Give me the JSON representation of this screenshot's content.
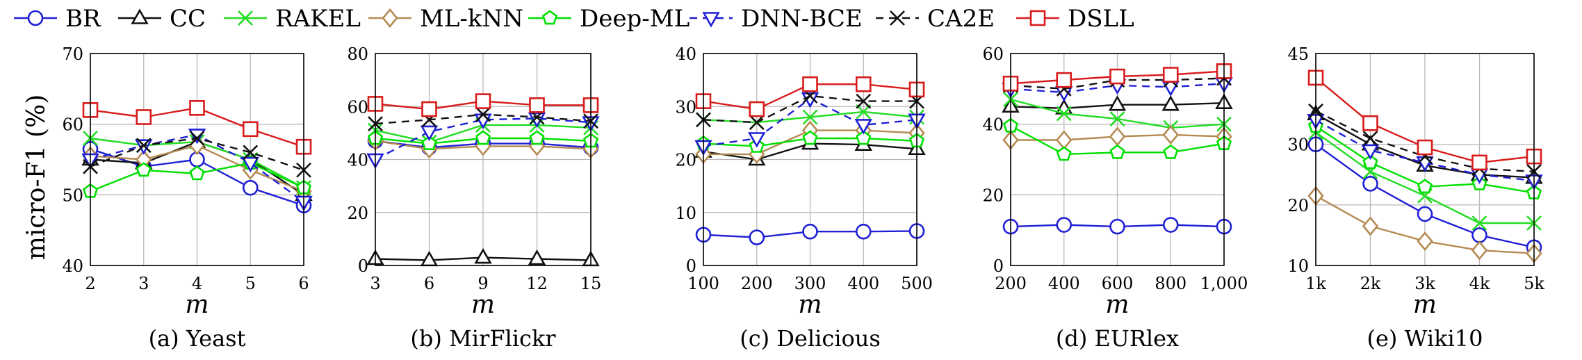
{
  "legend": [
    {
      "name": "BR",
      "color": "#1f1fd6",
      "marker": "circle",
      "dash": "solid"
    },
    {
      "name": "CC",
      "color": "#111111",
      "marker": "triangle-up",
      "dash": "solid"
    },
    {
      "name": "RAKEL",
      "color": "#22dd22",
      "marker": "x",
      "dash": "solid"
    },
    {
      "name": "ML-kNN",
      "color": "#b48a52",
      "marker": "diamond",
      "dash": "solid"
    },
    {
      "name": "Deep-ML",
      "color": "#00e000",
      "marker": "pentagon",
      "dash": "solid"
    },
    {
      "name": "DNN-BCE",
      "color": "#1f1fd6",
      "marker": "triangle-down",
      "dash": "dashed"
    },
    {
      "name": "CA2E",
      "color": "#111111",
      "marker": "x",
      "dash": "dashed"
    },
    {
      "name": "DSLL",
      "color": "#d81b1b",
      "marker": "square",
      "dash": "solid"
    }
  ],
  "ylabel": "micro-F1 (%)",
  "chart_data": [
    {
      "type": "line",
      "caption": "(a) Yeast",
      "xlabel": "m",
      "x": [
        "2",
        "3",
        "4",
        "5",
        "6"
      ],
      "ylim": [
        40,
        70
      ],
      "yticks": [
        40,
        50,
        60,
        70
      ],
      "grid": true,
      "series": [
        {
          "name": "BR",
          "values": [
            56.5,
            54.0,
            55.0,
            51.0,
            48.5
          ]
        },
        {
          "name": "CC",
          "values": [
            55.0,
            54.5,
            57.5,
            55.0,
            50.0
          ]
        },
        {
          "name": "RAKEL",
          "values": [
            58.0,
            57.0,
            57.5,
            55.0,
            51.0
          ]
        },
        {
          "name": "ML-kNN",
          "values": [
            55.5,
            55.0,
            57.0,
            53.5,
            50.5
          ]
        },
        {
          "name": "Deep-ML",
          "values": [
            50.5,
            53.5,
            53.0,
            54.5,
            51.0
          ]
        },
        {
          "name": "DNN-BCE",
          "values": [
            55.0,
            57.0,
            58.5,
            54.5,
            49.0
          ]
        },
        {
          "name": "CA2E",
          "values": [
            54.0,
            57.0,
            58.0,
            56.0,
            53.5
          ]
        },
        {
          "name": "DSLL",
          "values": [
            62.0,
            61.0,
            62.3,
            59.3,
            56.8
          ]
        }
      ]
    },
    {
      "type": "line",
      "caption": "(b) MirFlickr",
      "xlabel": "m",
      "x": [
        "3",
        "6",
        "9",
        "12",
        "15"
      ],
      "ylim": [
        0,
        80
      ],
      "yticks": [
        0,
        20,
        40,
        60,
        80
      ],
      "grid": true,
      "series": [
        {
          "name": "BR",
          "values": [
            47.0,
            44.5,
            46.0,
            46.0,
            44.5
          ]
        },
        {
          "name": "CC",
          "values": [
            2.5,
            2.0,
            3.0,
            2.5,
            2.0
          ]
        },
        {
          "name": "RAKEL",
          "values": [
            51.0,
            46.5,
            53.0,
            53.0,
            52.0
          ]
        },
        {
          "name": "ML-kNN",
          "values": [
            47.0,
            44.0,
            45.0,
            45.0,
            44.0
          ]
        },
        {
          "name": "Deep-ML",
          "values": [
            48.0,
            46.0,
            48.0,
            48.0,
            47.0
          ]
        },
        {
          "name": "DNN-BCE",
          "values": [
            40.0,
            50.5,
            55.0,
            55.5,
            54.0
          ]
        },
        {
          "name": "CA2E",
          "values": [
            53.5,
            55.0,
            57.0,
            56.0,
            54.5
          ]
        },
        {
          "name": "DSLL",
          "values": [
            61.0,
            59.0,
            62.0,
            60.5,
            60.5
          ]
        }
      ]
    },
    {
      "type": "line",
      "caption": "(c) Delicious",
      "xlabel": "m",
      "x": [
        "100",
        "200",
        "300",
        "400",
        "500"
      ],
      "ylim": [
        0,
        40
      ],
      "yticks": [
        0,
        10,
        20,
        30,
        40
      ],
      "grid": true,
      "series": [
        {
          "name": "BR",
          "values": [
            5.8,
            5.3,
            6.4,
            6.4,
            6.5
          ]
        },
        {
          "name": "CC",
          "values": [
            21.5,
            20.0,
            23.0,
            22.8,
            22.0
          ]
        },
        {
          "name": "RAKEL",
          "values": [
            27.5,
            27.0,
            28.0,
            29.0,
            28.0
          ]
        },
        {
          "name": "ML-kNN",
          "values": [
            21.0,
            21.0,
            25.5,
            25.5,
            25.0
          ]
        },
        {
          "name": "Deep-ML",
          "values": [
            23.0,
            22.5,
            24.0,
            24.0,
            23.5
          ]
        },
        {
          "name": "DNN-BCE",
          "values": [
            22.5,
            24.0,
            31.5,
            26.5,
            27.5
          ]
        },
        {
          "name": "CA2E",
          "values": [
            27.5,
            27.0,
            32.0,
            31.0,
            31.0
          ]
        },
        {
          "name": "DSLL",
          "values": [
            31.0,
            29.5,
            34.2,
            34.2,
            33.2
          ]
        }
      ]
    },
    {
      "type": "line",
      "caption": "(d) EURlex",
      "xlabel": "m",
      "x": [
        "200",
        "400",
        "600",
        "800",
        "1,000"
      ],
      "ylim": [
        0,
        60
      ],
      "yticks": [
        0,
        20,
        40,
        60
      ],
      "grid": true,
      "series": [
        {
          "name": "BR",
          "values": [
            11.0,
            11.5,
            11.0,
            11.5,
            11.0
          ]
        },
        {
          "name": "CC",
          "values": [
            45.0,
            44.5,
            45.5,
            45.5,
            46.0
          ]
        },
        {
          "name": "RAKEL",
          "values": [
            47.0,
            43.0,
            41.5,
            39.0,
            40.0
          ]
        },
        {
          "name": "ML-kNN",
          "values": [
            35.5,
            35.5,
            36.5,
            37.0,
            36.5
          ]
        },
        {
          "name": "Deep-ML",
          "values": [
            39.5,
            31.5,
            32.0,
            32.0,
            34.5
          ]
        },
        {
          "name": "DNN-BCE",
          "values": [
            50.0,
            49.0,
            51.0,
            50.5,
            51.5
          ]
        },
        {
          "name": "CA2E",
          "values": [
            51.0,
            50.0,
            52.5,
            52.5,
            53.0
          ]
        },
        {
          "name": "DSLL",
          "values": [
            51.5,
            52.5,
            53.5,
            54.0,
            55.0
          ]
        }
      ]
    },
    {
      "type": "line",
      "caption": "(e) Wiki10",
      "xlabel": "m",
      "x": [
        "1k",
        "2k",
        "3k",
        "4k",
        "5k"
      ],
      "ylim": [
        10,
        45
      ],
      "yticks": [
        10,
        20,
        30,
        45
      ],
      "grid": true,
      "series": [
        {
          "name": "BR",
          "values": [
            30.0,
            23.5,
            18.5,
            15.0,
            13.0
          ]
        },
        {
          "name": "CC",
          "values": [
            35.0,
            30.0,
            26.5,
            25.0,
            24.5
          ]
        },
        {
          "name": "RAKEL",
          "values": [
            32.0,
            25.5,
            21.5,
            17.0,
            17.0
          ]
        },
        {
          "name": "ML-kNN",
          "values": [
            21.5,
            16.5,
            14.0,
            12.5,
            12.0
          ]
        },
        {
          "name": "Deep-ML",
          "values": [
            33.0,
            27.0,
            23.0,
            23.5,
            22.0
          ]
        },
        {
          "name": "DNN-BCE",
          "values": [
            34.0,
            29.0,
            27.0,
            25.0,
            24.0
          ]
        },
        {
          "name": "CA2E",
          "values": [
            35.5,
            31.0,
            28.0,
            26.0,
            25.5
          ]
        },
        {
          "name": "DSLL",
          "values": [
            41.0,
            33.5,
            29.5,
            27.0,
            28.0
          ]
        }
      ]
    }
  ]
}
